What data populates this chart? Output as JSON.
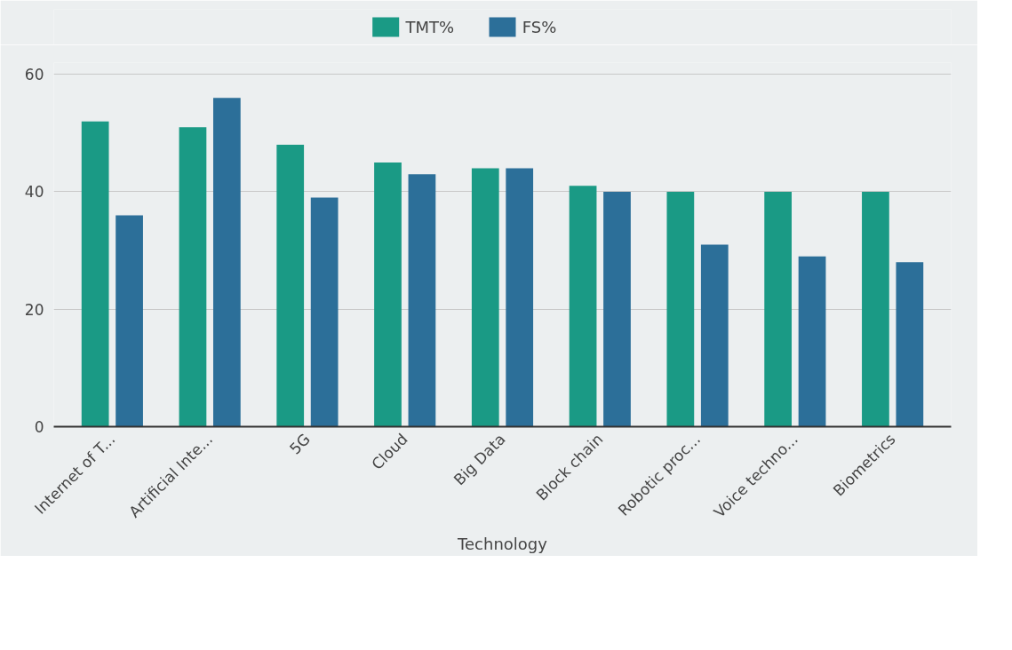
{
  "chart_data": {
    "type": "bar",
    "xlabel": "Technology",
    "categories": [
      "Internet of T...",
      "Artificial Inte...",
      "5G",
      "Cloud",
      "Big Data",
      "Block chain",
      "Robotic proc...",
      "Voice techno...",
      "Biometrics"
    ],
    "series": [
      {
        "name": "TMT%",
        "color": "#1a9a85",
        "values": [
          52,
          51,
          48,
          45,
          44,
          41,
          40,
          40,
          40
        ]
      },
      {
        "name": "FS%",
        "color": "#2c6f99",
        "values": [
          36,
          56,
          39,
          43,
          44,
          40,
          31,
          29,
          28
        ]
      }
    ],
    "ylim": [
      0,
      62
    ],
    "yticks": [
      0,
      20,
      40,
      60
    ],
    "grid": "y",
    "legend": "top"
  }
}
